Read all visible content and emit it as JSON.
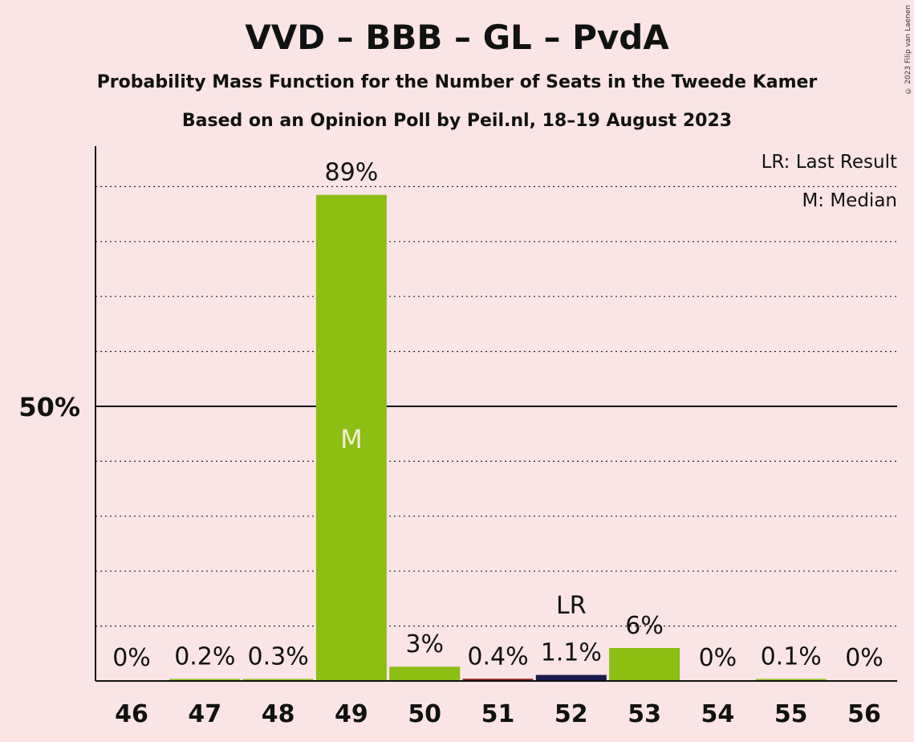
{
  "title": "VVD – BBB – GL – PvdA",
  "subtitle": "Probability Mass Function for the Number of Seats in the Tweede Kamer",
  "caption": "Based on an Opinion Poll by Peil.nl, 18–19 August 2023",
  "copyright": "© 2023 Filip van Laenen",
  "legend": {
    "lr": "LR: Last Result",
    "m": "M: Median"
  },
  "colors": {
    "background": "#fbe4e5",
    "bar_default": "#8cbe14",
    "bar_last_result": "#1a1a4d",
    "bar_51": "#8b1a1a",
    "median_text": "#f3ecd6"
  },
  "chart_data": {
    "type": "bar",
    "title": "VVD – BBB – GL – PvdA",
    "xlabel": "",
    "ylabel": "",
    "ylim": [
      0,
      100
    ],
    "ytick_label": "50%",
    "ytick_value": 50,
    "grid": true,
    "categories": [
      "46",
      "47",
      "48",
      "49",
      "50",
      "51",
      "52",
      "53",
      "54",
      "55",
      "56"
    ],
    "values": [
      0,
      0.2,
      0.3,
      88.5,
      2.6,
      0.4,
      1.1,
      6,
      0,
      0.1,
      0
    ],
    "value_labels": [
      "0%",
      "0.2%",
      "0.3%",
      "89%",
      "3%",
      "0.4%",
      "1.1%",
      "6%",
      "0%",
      "0.1%",
      "0%"
    ],
    "median_category": "49",
    "median_label": "M",
    "last_result_category": "52",
    "last_result_label": "LR"
  }
}
